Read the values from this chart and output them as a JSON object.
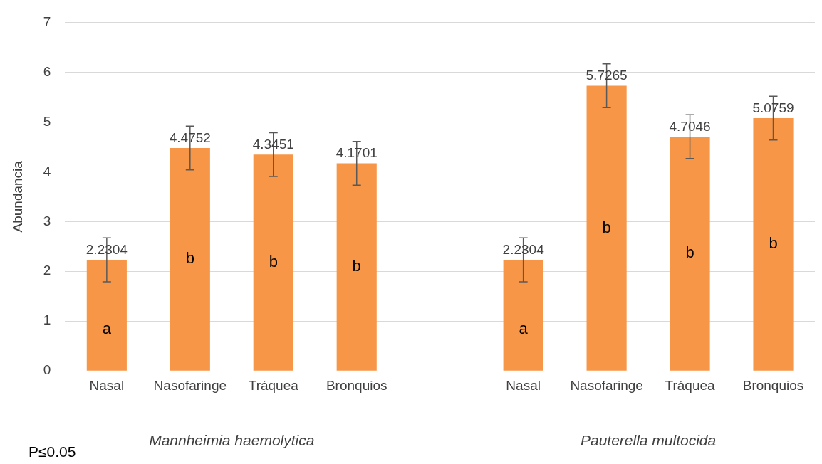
{
  "chart_data": {
    "type": "bar",
    "ylabel": "Abundancia",
    "categories": [
      "Nasal",
      "Nasofaringe",
      "Tráquea",
      "Bronquios",
      null,
      "Nasal",
      "Nasofaringe",
      "Tráquea",
      "Bronquios"
    ],
    "values": [
      2.2304,
      4.4752,
      4.3451,
      4.1701,
      null,
      2.2304,
      5.7265,
      4.7046,
      5.0759
    ],
    "errors": [
      0.44,
      0.44,
      0.44,
      0.44,
      null,
      0.44,
      0.44,
      0.44,
      0.44
    ],
    "color": "#f79646",
    "ylim": [
      0,
      7
    ],
    "yticks": [
      0,
      1,
      2,
      3,
      4,
      5,
      6,
      7
    ],
    "grid": "y",
    "legend": false,
    "data_labels": true,
    "annotations": [
      "a",
      "b",
      "b",
      "b",
      "a",
      "b",
      "b",
      "b",
      "Mannheimia haemolytica",
      "Pauterella multocida",
      "P≤0.05"
    ]
  }
}
